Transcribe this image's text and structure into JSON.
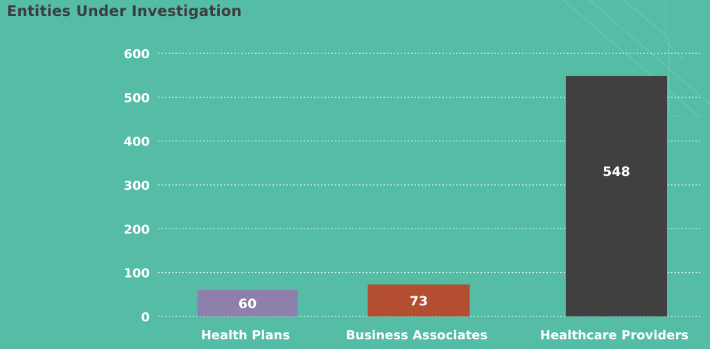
{
  "chart_data": {
    "type": "bar",
    "title": "Entities Under Investigation",
    "categories": [
      "Health Plans",
      "Business Associates",
      "Healthcare Providers"
    ],
    "values": [
      60,
      73,
      548
    ],
    "colors": [
      "#8e80ab",
      "#b34e31",
      "#404040"
    ],
    "ylim": [
      0,
      600
    ],
    "yticks": [
      0,
      100,
      200,
      300,
      400,
      500,
      600
    ],
    "grid": true,
    "data_labels": [
      "60",
      "73",
      "548"
    ]
  }
}
